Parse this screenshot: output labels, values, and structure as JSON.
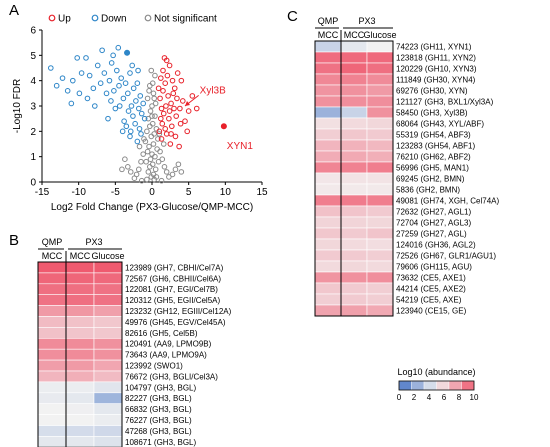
{
  "panels": {
    "A": "A",
    "B": "B",
    "C": "C"
  },
  "colors": {
    "up": "#e8212a",
    "down": "#2e86c8",
    "ns": "#8a8a8a",
    "low": "#4472c4",
    "mid": "#f2f2f2",
    "high": "#ef5a6f",
    "annotation": "#e8212a"
  },
  "chart_data": [
    {
      "panel": "A",
      "type": "scatter",
      "xlabel": "Log2 Fold Change (PX3-Glucose/QMP-MCC)",
      "ylabel": "-Log10 FDR",
      "xlim": [
        -15,
        15
      ],
      "ylim": [
        0,
        6
      ],
      "xticks": [
        -15,
        -10,
        -5,
        0,
        5,
        10,
        15
      ],
      "legend": [
        "Up",
        "Down",
        "Not significant"
      ],
      "legend_position": "top",
      "annotations": [
        {
          "text": "Xyl3B",
          "x": 6.5,
          "y": 3.5,
          "arrow_to": [
            4.5,
            3.0
          ]
        },
        {
          "text": "XYN1",
          "x": 10.2,
          "y": 1.7,
          "point": [
            9.8,
            2.2
          ]
        }
      ],
      "series": [
        {
          "name": "Up",
          "points": [
            [
              1.2,
              4.1
            ],
            [
              1.5,
              4.4
            ],
            [
              1.8,
              3.9
            ],
            [
              2.1,
              4.2
            ],
            [
              2.4,
              4.6
            ],
            [
              2.8,
              4.0
            ],
            [
              3.1,
              3.7
            ],
            [
              3.4,
              3.3
            ],
            [
              3.0,
              2.9
            ],
            [
              2.6,
              3.1
            ],
            [
              2.2,
              3.4
            ],
            [
              1.9,
              3.0
            ],
            [
              1.6,
              2.7
            ],
            [
              1.3,
              2.9
            ],
            [
              1.1,
              3.3
            ],
            [
              1.4,
              2.3
            ],
            [
              1.8,
              2.1
            ],
            [
              2.3,
              2.5
            ],
            [
              2.7,
              2.2
            ],
            [
              3.3,
              2.6
            ],
            [
              3.8,
              2.9
            ],
            [
              4.2,
              3.2
            ],
            [
              4.5,
              2.4
            ],
            [
              5.0,
              2.8
            ],
            [
              5.5,
              3.4
            ],
            [
              6.1,
              2.9
            ],
            [
              1.0,
              2.0
            ],
            [
              1.3,
              1.7
            ],
            [
              2.0,
              1.9
            ],
            [
              2.5,
              1.5
            ],
            [
              3.2,
              1.8
            ],
            [
              3.7,
              1.4
            ],
            [
              1.5,
              3.6
            ],
            [
              2.9,
              3.5
            ],
            [
              2.0,
              4.8
            ],
            [
              4.0,
              4.0
            ],
            [
              3.5,
              4.3
            ],
            [
              1.2,
              2.5
            ],
            [
              2.4,
              2.8
            ],
            [
              4.8,
              2.0
            ],
            [
              0.9,
              3.7
            ],
            [
              1.7,
              4.9
            ],
            [
              3.9,
              2.3
            ],
            [
              2.6,
              1.9
            ],
            [
              9.8,
              2.2
            ]
          ]
        },
        {
          "name": "Down",
          "points": [
            [
              -13.8,
              4.5
            ],
            [
              -13.0,
              3.8
            ],
            [
              -12.2,
              4.1
            ],
            [
              -11.5,
              3.6
            ],
            [
              -10.8,
              4.0
            ],
            [
              -10.2,
              4.9
            ],
            [
              -9.6,
              4.3
            ],
            [
              -9.0,
              4.9
            ],
            [
              -8.5,
              4.2
            ],
            [
              -8.0,
              3.7
            ],
            [
              -7.4,
              4.6
            ],
            [
              -7.0,
              3.9
            ],
            [
              -6.5,
              4.3
            ],
            [
              -6.2,
              3.5
            ],
            [
              -5.8,
              4.0
            ],
            [
              -5.5,
              4.7
            ],
            [
              -5.2,
              3.6
            ],
            [
              -4.8,
              4.4
            ],
            [
              -4.5,
              3.8
            ],
            [
              -4.2,
              4.1
            ],
            [
              -3.9,
              3.3
            ],
            [
              -3.6,
              3.9
            ],
            [
              -3.3,
              3.5
            ],
            [
              -3.0,
              4.3
            ],
            [
              -2.8,
              3.0
            ],
            [
              -2.5,
              3.7
            ],
            [
              -2.2,
              3.2
            ],
            [
              -2.0,
              3.9
            ],
            [
              -1.8,
              2.9
            ],
            [
              -1.6,
              3.4
            ],
            [
              -1.4,
              2.7
            ],
            [
              -1.2,
              3.1
            ],
            [
              -1.0,
              2.5
            ],
            [
              -2.6,
              2.6
            ],
            [
              -3.2,
              2.8
            ],
            [
              -3.8,
              2.4
            ],
            [
              -4.4,
              3.0
            ],
            [
              -5.0,
              2.9
            ],
            [
              -5.6,
              3.2
            ],
            [
              -6.0,
              2.5
            ],
            [
              -3.5,
              2.2
            ],
            [
              -2.9,
              2.0
            ],
            [
              -2.3,
              2.3
            ],
            [
              -1.7,
              2.1
            ],
            [
              -4.0,
              2.0
            ],
            [
              -8.8,
              3.3
            ],
            [
              -7.8,
              3.0
            ],
            [
              -9.9,
              3.5
            ],
            [
              -11.0,
              3.1
            ],
            [
              -5.3,
              5.0
            ],
            [
              -4.6,
              5.3
            ],
            [
              -3.4,
              5.1
            ],
            [
              -2.7,
              4.6
            ],
            [
              -1.9,
              4.4
            ],
            [
              -6.8,
              5.2
            ],
            [
              -3.0,
              1.8
            ],
            [
              -2.0,
              1.6
            ],
            [
              -1.5,
              1.9
            ]
          ]
        },
        {
          "name": "Not significant",
          "points": [
            [
              -0.3,
              3.8
            ],
            [
              0.2,
              3.5
            ],
            [
              -0.6,
              3.3
            ],
            [
              0.5,
              3.1
            ],
            [
              0.0,
              3.0
            ],
            [
              -0.2,
              2.8
            ],
            [
              0.4,
              2.6
            ],
            [
              -0.5,
              2.5
            ],
            [
              0.1,
              2.3
            ],
            [
              -0.3,
              2.2
            ],
            [
              0.6,
              2.1
            ],
            [
              -0.7,
              2.0
            ],
            [
              0.3,
              1.9
            ],
            [
              -0.1,
              1.8
            ],
            [
              0.8,
              1.7
            ],
            [
              -0.9,
              1.6
            ],
            [
              0.2,
              1.5
            ],
            [
              -0.4,
              1.4
            ],
            [
              0.7,
              1.3
            ],
            [
              -0.6,
              1.2
            ],
            [
              0.0,
              1.1
            ],
            [
              0.4,
              1.0
            ],
            [
              -0.2,
              0.9
            ],
            [
              0.9,
              0.8
            ],
            [
              -0.8,
              0.8
            ],
            [
              0.1,
              0.7
            ],
            [
              -0.3,
              0.6
            ],
            [
              0.5,
              0.5
            ],
            [
              -0.5,
              0.4
            ],
            [
              0.2,
              0.3
            ],
            [
              -0.1,
              0.2
            ],
            [
              0.3,
              0.1
            ],
            [
              1.1,
              1.2
            ],
            [
              -1.2,
              1.1
            ],
            [
              1.4,
              0.9
            ],
            [
              -1.5,
              0.8
            ],
            [
              1.7,
              0.6
            ],
            [
              -1.8,
              0.5
            ],
            [
              2.0,
              0.4
            ],
            [
              -2.1,
              0.3
            ],
            [
              2.3,
              0.2
            ],
            [
              -2.4,
              0.15
            ],
            [
              2.8,
              0.3
            ],
            [
              -2.9,
              0.4
            ],
            [
              3.2,
              0.5
            ],
            [
              -3.3,
              0.6
            ],
            [
              1.0,
              1.9
            ],
            [
              -1.1,
              1.7
            ],
            [
              0.0,
              2.6
            ],
            [
              0.3,
              3.3
            ],
            [
              -0.4,
              3.6
            ],
            [
              0.1,
              3.9
            ],
            [
              0.6,
              0.2
            ],
            [
              -0.7,
              0.1
            ],
            [
              1.3,
              0.05
            ],
            [
              -1.4,
              0.05
            ],
            [
              3.6,
              0.7
            ],
            [
              -3.7,
              0.9
            ],
            [
              4.0,
              0.4
            ],
            [
              -4.1,
              0.5
            ],
            [
              1.6,
              1.5
            ],
            [
              -1.7,
              1.4
            ],
            [
              0.4,
              4.2
            ],
            [
              -0.1,
              4.4
            ]
          ]
        }
      ]
    },
    {
      "panel": "B",
      "type": "heatmap",
      "header": {
        "group1": "QMP",
        "group2": "PX3",
        "cols": [
          "MCC",
          "MCC",
          "Glucose"
        ]
      },
      "rows": [
        {
          "label": "123989 (GH7, CBHI/Cel7A)",
          "values": [
            10.0,
            10.0,
            10.0
          ]
        },
        {
          "label": "72567 (GH6, CBHII/Cel6A)",
          "values": [
            9.6,
            9.6,
            9.5
          ]
        },
        {
          "label": "122081 (GH7, EGI/Cel7B)",
          "values": [
            9.3,
            9.3,
            9.2
          ]
        },
        {
          "label": "120312 (GH5, EGII/Cel5A)",
          "values": [
            9.2,
            9.3,
            9.2
          ]
        },
        {
          "label": "123232 (GH12, EGIII/Cel12A)",
          "values": [
            7.9,
            8.0,
            7.7
          ]
        },
        {
          "label": "49976 (GH45, EGV/Cel45A)",
          "values": [
            6.8,
            6.6,
            6.4
          ]
        },
        {
          "label": "82616 (GH5, Cel5B)",
          "values": [
            6.6,
            6.5,
            6.4
          ]
        },
        {
          "label": "120491 (AA9, LPMO9B)",
          "values": [
            8.4,
            8.4,
            8.2
          ]
        },
        {
          "label": "73643 (AA9, LPMO9A)",
          "values": [
            8.3,
            8.4,
            8.2
          ]
        },
        {
          "label": "123992 (SWO1)",
          "values": [
            7.8,
            7.9,
            7.5
          ]
        },
        {
          "label": "76672 (GH3, BGLI/Cel3A)",
          "values": [
            7.0,
            7.2,
            6.8
          ]
        },
        {
          "label": "104797 (GH3, BGL)",
          "values": [
            4.8,
            4.8,
            4.5
          ]
        },
        {
          "label": "82227 (GH3, BGL)",
          "values": [
            4.7,
            4.6,
            2.6
          ]
        },
        {
          "label": "66832 (GH3, BGL)",
          "values": [
            5.0,
            4.9,
            4.6
          ]
        },
        {
          "label": "76227 (GH3, BGL)",
          "values": [
            5.0,
            5.0,
            4.8
          ]
        },
        {
          "label": "47268 (GH3, BGL)",
          "values": [
            4.2,
            4.1,
            4.0
          ]
        },
        {
          "label": "108671 (GH3, BGL)",
          "values": [
            4.6,
            4.6,
            4.4
          ]
        }
      ]
    },
    {
      "panel": "C",
      "type": "heatmap",
      "header": {
        "group1": "QMP",
        "group2": "PX3",
        "cols": [
          "MCC",
          "MCC",
          "Glucose"
        ]
      },
      "rows": [
        {
          "label": "74223 (GH11, XYN1)",
          "values": [
            3.8,
            4.6,
            5.0
          ]
        },
        {
          "label": "123818 (GH11, XYN2)",
          "values": [
            9.4,
            9.5,
            9.5
          ]
        },
        {
          "label": "120229 (GH10, XYN3)",
          "values": [
            9.2,
            9.6,
            9.3
          ]
        },
        {
          "label": "111849 (GH30, XYN4)",
          "values": [
            8.5,
            8.7,
            8.4
          ]
        },
        {
          "label": "69276 (GH30, XYN)",
          "values": [
            8.1,
            8.2,
            7.9
          ]
        },
        {
          "label": "121127 (GH3, BXL1/Xyl3A)",
          "values": [
            8.2,
            8.3,
            8.3
          ]
        },
        {
          "label": "58450 (GH3, Xyl3B)",
          "values": [
            2.5,
            3.8,
            8.2
          ]
        },
        {
          "label": "68064 (GH43, XYL/ABF)",
          "values": [
            5.6,
            5.8,
            5.9
          ]
        },
        {
          "label": "55319 (GH54, ABF3)",
          "values": [
            6.2,
            6.4,
            6.3
          ]
        },
        {
          "label": "123283 (GH54, ABF1)",
          "values": [
            7.0,
            7.1,
            6.9
          ]
        },
        {
          "label": "76210 (GH62, ABF2)",
          "values": [
            7.3,
            7.4,
            7.2
          ]
        },
        {
          "label": "56996 (GH5, MAN1)",
          "values": [
            8.6,
            8.7,
            8.8
          ]
        },
        {
          "label": "69245 (GH2, BMN)",
          "values": [
            5.4,
            5.5,
            5.5
          ]
        },
        {
          "label": "5836 (GH2, BMN)",
          "values": [
            5.3,
            5.3,
            5.3
          ]
        },
        {
          "label": "49081 (GH74, XGH, Cel74A)",
          "values": [
            8.8,
            8.9,
            8.8
          ]
        },
        {
          "label": "72632 (GH27, AGL1)",
          "values": [
            6.6,
            6.5,
            6.3
          ]
        },
        {
          "label": "72704 (GH27, AGL3)",
          "values": [
            6.0,
            6.0,
            5.9
          ]
        },
        {
          "label": "27259 (GH27, AGL)",
          "values": [
            6.4,
            6.3,
            6.5
          ]
        },
        {
          "label": "124016 (GH36, AGL2)",
          "values": [
            5.9,
            5.8,
            5.7
          ]
        },
        {
          "label": "72526 (GH67, GLR1/AGU1)",
          "values": [
            6.3,
            6.3,
            6.2
          ]
        },
        {
          "label": "79606 (GH115, AGU)",
          "values": [
            5.8,
            5.9,
            5.8
          ]
        },
        {
          "label": "73632 (CE5, AXE1)",
          "values": [
            8.1,
            8.2,
            8.3
          ]
        },
        {
          "label": "44214 (CE5, AXE2)",
          "values": [
            6.4,
            6.3,
            6.2
          ]
        },
        {
          "label": "54219 (CE5, AXE)",
          "values": [
            6.2,
            6.3,
            6.2
          ]
        },
        {
          "label": "123940 (CE15, GE)",
          "values": [
            7.6,
            7.7,
            7.4
          ]
        }
      ]
    }
  ],
  "colorbar": {
    "title": "Log10 (abundance)",
    "ticks": [
      "0",
      "2",
      "4",
      "6",
      "8",
      "10"
    ],
    "range": [
      0,
      10
    ]
  }
}
